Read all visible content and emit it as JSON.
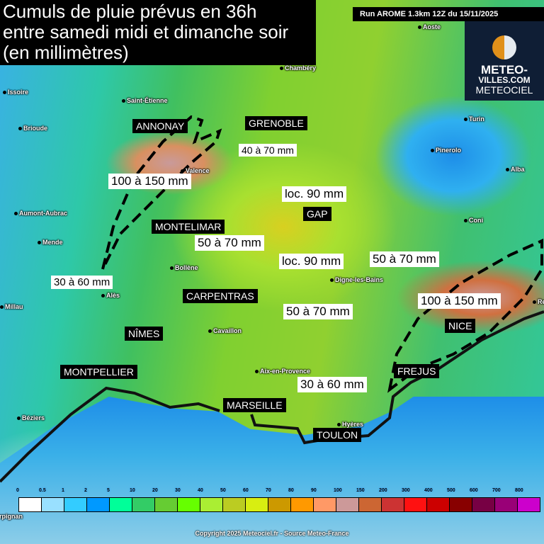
{
  "title": {
    "line1": "Cumuls de pluie prévus en 36h",
    "line2": "entre samedi midi et dimanche soir",
    "line3": "(en millimètres)"
  },
  "run": "Run AROME 1.3km 12Z du 15/11/2025",
  "logo": {
    "line1": "METEO-",
    "line2": "VILLES.COM",
    "line3": "METEOCIEL"
  },
  "cities": [
    "Aoste",
    "Chambéry",
    "Issoire",
    "Saint-Étienne",
    "Brioude",
    "Valence",
    "Turin",
    "Pinerolo",
    "Alba",
    "Aumont-Aubrac",
    "Mende",
    "Coni",
    "Bollène",
    "Alès",
    "Millau",
    "Digne-les-Bains",
    "Cavaillon",
    "Aix-en-Provence",
    "Béziers",
    "Hyères",
    "rpignan",
    "Remo"
  ],
  "major_cities": [
    "ANNONAY",
    "GRENOBLE",
    "GAP",
    "MONTELIMAR",
    "CARPENTRAS",
    "NÎMES",
    "MONTPELLIER",
    "MARSEILLE",
    "TOULON",
    "NICE",
    "FREJUS"
  ],
  "annotations": [
    "40 à 70 mm",
    "100 à 150 mm",
    "loc. 90 mm",
    "50 à 70 mm",
    "loc. 90 mm",
    "50 à 70 mm",
    "30 à 60 mm",
    "100 à 150 mm",
    "50 à 70 mm",
    "30 à 60 mm"
  ],
  "legend": {
    "labels": [
      "0",
      "0.5",
      "1",
      "2",
      "5",
      "10",
      "20",
      "30",
      "40",
      "50",
      "60",
      "70",
      "80",
      "90",
      "100",
      "150",
      "200",
      "300",
      "400",
      "500",
      "600",
      "700",
      "800"
    ],
    "colors": [
      "#ffffff",
      "#99e0ff",
      "#33ccff",
      "#0099ff",
      "#00ff99",
      "#33cc66",
      "#66cc33",
      "#66ff00",
      "#aaee33",
      "#bbcc22",
      "#d8ee11",
      "#cc9900",
      "#ff9900",
      "#ff9966",
      "#cc9999",
      "#cc6633",
      "#cc3333",
      "#ff1111",
      "#cc0000",
      "#880000",
      "#770044",
      "#990077",
      "#cc00cc"
    ]
  },
  "copyright": "Copyright 2025 Meteociel.fr - Source Meteo-France"
}
